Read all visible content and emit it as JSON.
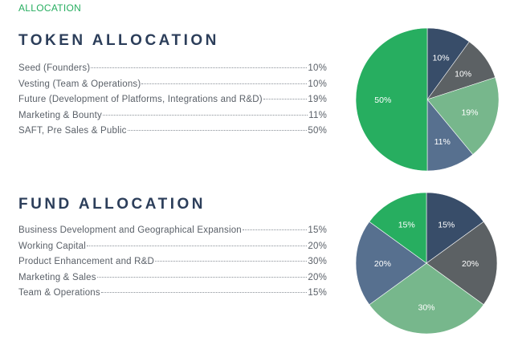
{
  "section_label": "ALLOCATION",
  "token": {
    "title": "TOKEN ALLOCATION",
    "items": [
      {
        "label": "Seed (Founders)",
        "pct": "10%"
      },
      {
        "label": "Vesting (Team & Operations)",
        "pct": "10%"
      },
      {
        "label": "Future (Development of Platforms, Integrations and R&D)",
        "pct": "19%"
      },
      {
        "label": "Marketing & Bounty",
        "pct": "11%"
      },
      {
        "label": "SAFT, Pre Sales & Public",
        "pct": "50%"
      }
    ]
  },
  "fund": {
    "title": "FUND ALLOCATION",
    "items": [
      {
        "label": "Business Development and Geographical Expansion",
        "pct": "15%"
      },
      {
        "label": "Working Capital",
        "pct": "20%"
      },
      {
        "label": "Product Enhancement and R&D",
        "pct": "30%"
      },
      {
        "label": "Marketing & Sales",
        "pct": "20%"
      },
      {
        "label": "Team & Operations",
        "pct": "15%"
      }
    ]
  },
  "chart_data": [
    {
      "type": "pie",
      "title": "",
      "start_angle_deg": 0,
      "slices": [
        {
          "value": 10,
          "label": "10%",
          "color": "#384d69"
        },
        {
          "value": 10,
          "label": "10%",
          "color": "#5c6164"
        },
        {
          "value": 19,
          "label": "19%",
          "color": "#77b78c"
        },
        {
          "value": 11,
          "label": "11%",
          "color": "#57708f"
        },
        {
          "value": 50,
          "label": "50%",
          "color": "#27ae60"
        }
      ]
    },
    {
      "type": "pie",
      "title": "",
      "start_angle_deg": 0,
      "slices": [
        {
          "value": 15,
          "label": "15%",
          "color": "#384d69"
        },
        {
          "value": 20,
          "label": "20%",
          "color": "#5c6164"
        },
        {
          "value": 30,
          "label": "30%",
          "color": "#77b78c"
        },
        {
          "value": 20,
          "label": "20%",
          "color": "#57708f"
        },
        {
          "value": 15,
          "label": "15%",
          "color": "#27ae60"
        }
      ]
    }
  ]
}
